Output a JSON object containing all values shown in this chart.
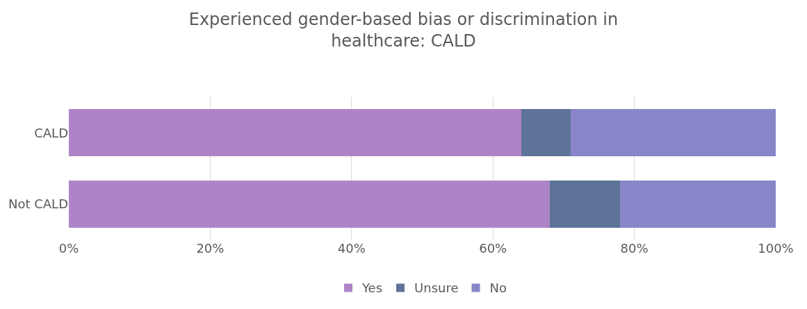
{
  "chart_data": {
    "type": "bar",
    "orientation": "horizontal",
    "stacked": true,
    "title": "Experienced gender-based bias or discrimination in\nhealthcare: CALD",
    "categories": [
      "CALD",
      "Not CALD"
    ],
    "series": [
      {
        "name": "Yes",
        "color": "#ae84c6",
        "values": [
          64,
          68
        ]
      },
      {
        "name": "Unsure",
        "color": "#5e7399",
        "values": [
          7,
          10
        ]
      },
      {
        "name": "No",
        "color": "#8886c8",
        "values": [
          29,
          22
        ]
      }
    ],
    "xlim": [
      0,
      100
    ],
    "xticks": [
      {
        "value": 0,
        "label": "0%"
      },
      {
        "value": 20,
        "label": "20%"
      },
      {
        "value": 40,
        "label": "40%"
      },
      {
        "value": 60,
        "label": "60%"
      },
      {
        "value": 80,
        "label": "80%"
      },
      {
        "value": 100,
        "label": "100%"
      }
    ],
    "grid": "x",
    "legend": "bottom"
  }
}
